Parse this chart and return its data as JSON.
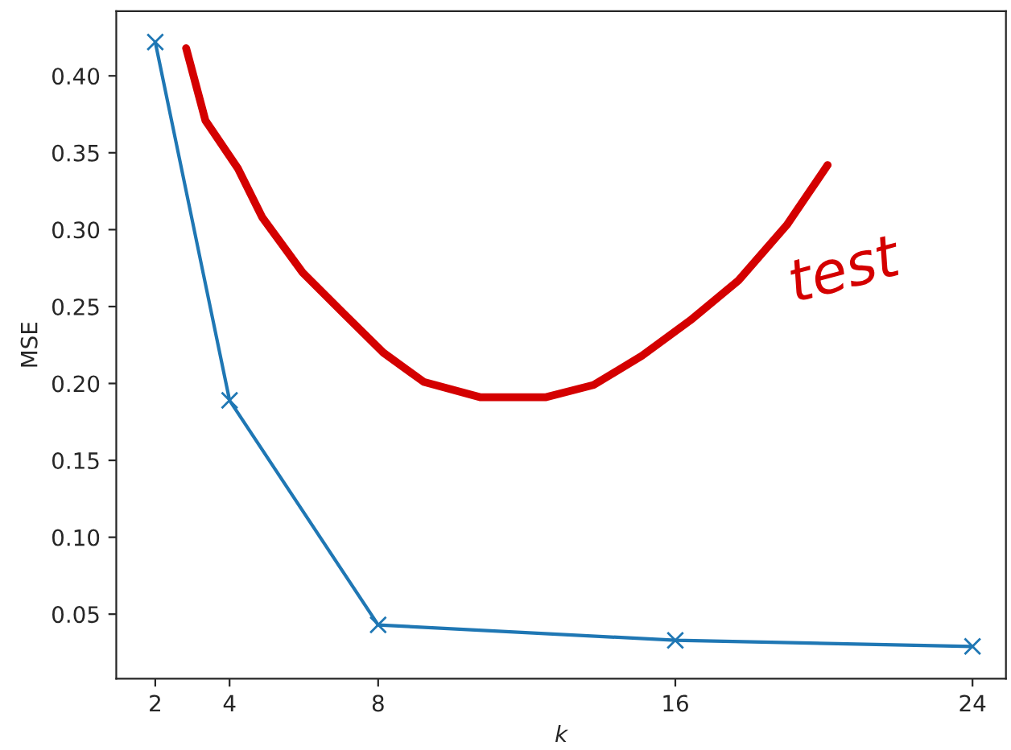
{
  "chart_data": {
    "type": "line",
    "xlabel": "k",
    "ylabel": "MSE",
    "marker": "cross",
    "grid": false,
    "legend": false,
    "xlim": [
      0.95,
      24.9
    ],
    "ylim": [
      0.008,
      0.442
    ],
    "xticks": [
      2,
      4,
      8,
      16,
      24
    ],
    "yticks": [
      {
        "value": 0.05,
        "label": "0.05"
      },
      {
        "value": 0.1,
        "label": "0.10"
      },
      {
        "value": 0.15,
        "label": "0.15"
      },
      {
        "value": 0.2,
        "label": "0.20"
      },
      {
        "value": 0.25,
        "label": "0.25"
      },
      {
        "value": 0.3,
        "label": "0.30"
      },
      {
        "value": 0.35,
        "label": "0.35"
      },
      {
        "value": 0.4,
        "label": "0.40"
      }
    ],
    "series": [
      {
        "color": "#1f77b4",
        "x": [
          2,
          4,
          8,
          16,
          24
        ],
        "values": [
          0.422,
          0.189,
          0.043,
          0.033,
          0.029
        ]
      },
      {
        "name": "test",
        "color": "#d40000",
        "marker": "none",
        "x": [
          2.83,
          3.35,
          4.22,
          4.88,
          5.97,
          7.05,
          8.14,
          9.23,
          10.76,
          12.5,
          13.8,
          15.1,
          16.4,
          17.7,
          19.0,
          20.1
        ],
        "values": [
          0.418,
          0.371,
          0.34,
          0.308,
          0.272,
          0.246,
          0.22,
          0.201,
          0.191,
          0.191,
          0.199,
          0.218,
          0.241,
          0.267,
          0.303,
          0.342
        ]
      }
    ]
  }
}
